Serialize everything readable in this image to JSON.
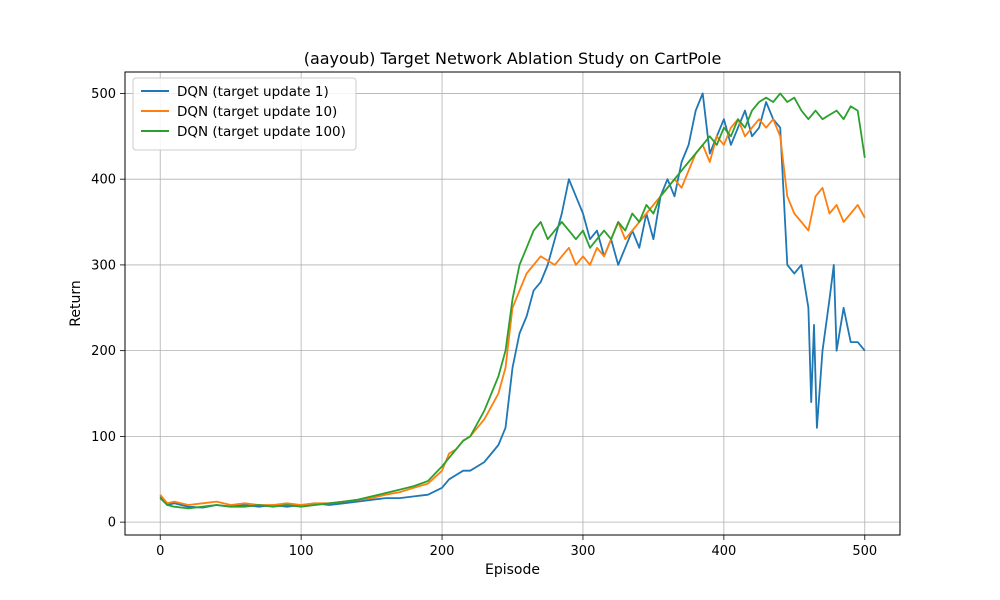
{
  "chart_data": {
    "type": "line",
    "title": "(aayoub) Target Network Ablation Study on CartPole",
    "xlabel": "Episode",
    "ylabel": "Return",
    "xlim": [
      -25,
      525
    ],
    "ylim": [
      -15,
      525
    ],
    "xticks": [
      0,
      100,
      200,
      300,
      400,
      500
    ],
    "yticks": [
      0,
      100,
      200,
      300,
      400,
      500
    ],
    "grid": true,
    "legend_position": "upper left",
    "series": [
      {
        "name": "DQN (target update 1)",
        "color": "#1f77b4",
        "points": [
          [
            0,
            30
          ],
          [
            5,
            20
          ],
          [
            10,
            22
          ],
          [
            20,
            18
          ],
          [
            30,
            17
          ],
          [
            40,
            20
          ],
          [
            50,
            18
          ],
          [
            60,
            20
          ],
          [
            70,
            18
          ],
          [
            80,
            20
          ],
          [
            90,
            18
          ],
          [
            100,
            20
          ],
          [
            110,
            22
          ],
          [
            120,
            20
          ],
          [
            130,
            22
          ],
          [
            140,
            24
          ],
          [
            150,
            26
          ],
          [
            160,
            28
          ],
          [
            170,
            28
          ],
          [
            180,
            30
          ],
          [
            190,
            32
          ],
          [
            200,
            40
          ],
          [
            205,
            50
          ],
          [
            210,
            55
          ],
          [
            215,
            60
          ],
          [
            220,
            60
          ],
          [
            225,
            65
          ],
          [
            230,
            70
          ],
          [
            235,
            80
          ],
          [
            240,
            90
          ],
          [
            245,
            110
          ],
          [
            250,
            180
          ],
          [
            255,
            220
          ],
          [
            260,
            240
          ],
          [
            265,
            270
          ],
          [
            270,
            280
          ],
          [
            275,
            300
          ],
          [
            280,
            330
          ],
          [
            285,
            360
          ],
          [
            290,
            400
          ],
          [
            295,
            380
          ],
          [
            300,
            360
          ],
          [
            305,
            330
          ],
          [
            310,
            340
          ],
          [
            315,
            310
          ],
          [
            320,
            330
          ],
          [
            325,
            300
          ],
          [
            330,
            320
          ],
          [
            335,
            340
          ],
          [
            340,
            320
          ],
          [
            345,
            360
          ],
          [
            350,
            330
          ],
          [
            355,
            380
          ],
          [
            360,
            400
          ],
          [
            365,
            380
          ],
          [
            370,
            420
          ],
          [
            375,
            440
          ],
          [
            380,
            480
          ],
          [
            385,
            500
          ],
          [
            390,
            430
          ],
          [
            395,
            450
          ],
          [
            400,
            470
          ],
          [
            405,
            440
          ],
          [
            410,
            460
          ],
          [
            415,
            480
          ],
          [
            420,
            450
          ],
          [
            425,
            460
          ],
          [
            430,
            490
          ],
          [
            435,
            470
          ],
          [
            440,
            460
          ],
          [
            445,
            300
          ],
          [
            450,
            290
          ],
          [
            455,
            300
          ],
          [
            460,
            250
          ],
          [
            462,
            140
          ],
          [
            464,
            230
          ],
          [
            466,
            110
          ],
          [
            470,
            200
          ],
          [
            475,
            260
          ],
          [
            478,
            300
          ],
          [
            480,
            200
          ],
          [
            485,
            250
          ],
          [
            490,
            210
          ],
          [
            495,
            210
          ],
          [
            500,
            200
          ]
        ]
      },
      {
        "name": "DQN (target update 10)",
        "color": "#ff7f0e",
        "points": [
          [
            0,
            32
          ],
          [
            5,
            22
          ],
          [
            10,
            24
          ],
          [
            20,
            20
          ],
          [
            30,
            22
          ],
          [
            40,
            24
          ],
          [
            50,
            20
          ],
          [
            60,
            22
          ],
          [
            70,
            20
          ],
          [
            80,
            20
          ],
          [
            90,
            22
          ],
          [
            100,
            20
          ],
          [
            110,
            22
          ],
          [
            120,
            22
          ],
          [
            130,
            24
          ],
          [
            140,
            26
          ],
          [
            150,
            28
          ],
          [
            160,
            32
          ],
          [
            170,
            35
          ],
          [
            180,
            40
          ],
          [
            190,
            45
          ],
          [
            200,
            60
          ],
          [
            205,
            80
          ],
          [
            210,
            85
          ],
          [
            215,
            95
          ],
          [
            220,
            100
          ],
          [
            225,
            110
          ],
          [
            230,
            120
          ],
          [
            235,
            135
          ],
          [
            240,
            150
          ],
          [
            245,
            180
          ],
          [
            250,
            250
          ],
          [
            255,
            270
          ],
          [
            260,
            290
          ],
          [
            265,
            300
          ],
          [
            270,
            310
          ],
          [
            275,
            305
          ],
          [
            280,
            300
          ],
          [
            285,
            310
          ],
          [
            290,
            320
          ],
          [
            295,
            300
          ],
          [
            300,
            310
          ],
          [
            305,
            300
          ],
          [
            310,
            320
          ],
          [
            315,
            310
          ],
          [
            320,
            330
          ],
          [
            325,
            350
          ],
          [
            330,
            330
          ],
          [
            335,
            340
          ],
          [
            340,
            350
          ],
          [
            345,
            360
          ],
          [
            350,
            370
          ],
          [
            355,
            380
          ],
          [
            360,
            390
          ],
          [
            365,
            400
          ],
          [
            370,
            390
          ],
          [
            375,
            410
          ],
          [
            380,
            430
          ],
          [
            385,
            440
          ],
          [
            390,
            420
          ],
          [
            395,
            450
          ],
          [
            400,
            440
          ],
          [
            405,
            460
          ],
          [
            410,
            470
          ],
          [
            415,
            450
          ],
          [
            420,
            460
          ],
          [
            425,
            470
          ],
          [
            430,
            460
          ],
          [
            435,
            470
          ],
          [
            440,
            450
          ],
          [
            445,
            380
          ],
          [
            450,
            360
          ],
          [
            455,
            350
          ],
          [
            460,
            340
          ],
          [
            465,
            380
          ],
          [
            470,
            390
          ],
          [
            475,
            360
          ],
          [
            480,
            370
          ],
          [
            485,
            350
          ],
          [
            490,
            360
          ],
          [
            495,
            370
          ],
          [
            500,
            355
          ]
        ]
      },
      {
        "name": "DQN (target update 100)",
        "color": "#2ca02c",
        "points": [
          [
            0,
            28
          ],
          [
            5,
            20
          ],
          [
            10,
            18
          ],
          [
            20,
            16
          ],
          [
            30,
            18
          ],
          [
            40,
            20
          ],
          [
            50,
            18
          ],
          [
            60,
            18
          ],
          [
            70,
            20
          ],
          [
            80,
            18
          ],
          [
            90,
            20
          ],
          [
            100,
            18
          ],
          [
            110,
            20
          ],
          [
            120,
            22
          ],
          [
            130,
            24
          ],
          [
            140,
            26
          ],
          [
            150,
            30
          ],
          [
            160,
            34
          ],
          [
            170,
            38
          ],
          [
            180,
            42
          ],
          [
            190,
            48
          ],
          [
            200,
            65
          ],
          [
            205,
            75
          ],
          [
            210,
            85
          ],
          [
            215,
            95
          ],
          [
            220,
            100
          ],
          [
            225,
            115
          ],
          [
            230,
            130
          ],
          [
            235,
            150
          ],
          [
            240,
            170
          ],
          [
            245,
            200
          ],
          [
            250,
            260
          ],
          [
            255,
            300
          ],
          [
            260,
            320
          ],
          [
            265,
            340
          ],
          [
            270,
            350
          ],
          [
            275,
            330
          ],
          [
            280,
            340
          ],
          [
            285,
            350
          ],
          [
            290,
            340
          ],
          [
            295,
            330
          ],
          [
            300,
            340
          ],
          [
            305,
            320
          ],
          [
            310,
            330
          ],
          [
            315,
            340
          ],
          [
            320,
            330
          ],
          [
            325,
            350
          ],
          [
            330,
            340
          ],
          [
            335,
            360
          ],
          [
            340,
            350
          ],
          [
            345,
            370
          ],
          [
            350,
            360
          ],
          [
            355,
            380
          ],
          [
            360,
            390
          ],
          [
            365,
            400
          ],
          [
            370,
            410
          ],
          [
            375,
            420
          ],
          [
            380,
            430
          ],
          [
            385,
            440
          ],
          [
            390,
            450
          ],
          [
            395,
            440
          ],
          [
            400,
            460
          ],
          [
            405,
            450
          ],
          [
            410,
            470
          ],
          [
            415,
            460
          ],
          [
            420,
            480
          ],
          [
            425,
            490
          ],
          [
            430,
            495
          ],
          [
            435,
            490
          ],
          [
            440,
            500
          ],
          [
            445,
            490
          ],
          [
            450,
            495
          ],
          [
            455,
            480
          ],
          [
            460,
            470
          ],
          [
            465,
            480
          ],
          [
            470,
            470
          ],
          [
            475,
            475
          ],
          [
            480,
            480
          ],
          [
            485,
            470
          ],
          [
            490,
            485
          ],
          [
            495,
            480
          ],
          [
            500,
            425
          ]
        ]
      }
    ]
  }
}
